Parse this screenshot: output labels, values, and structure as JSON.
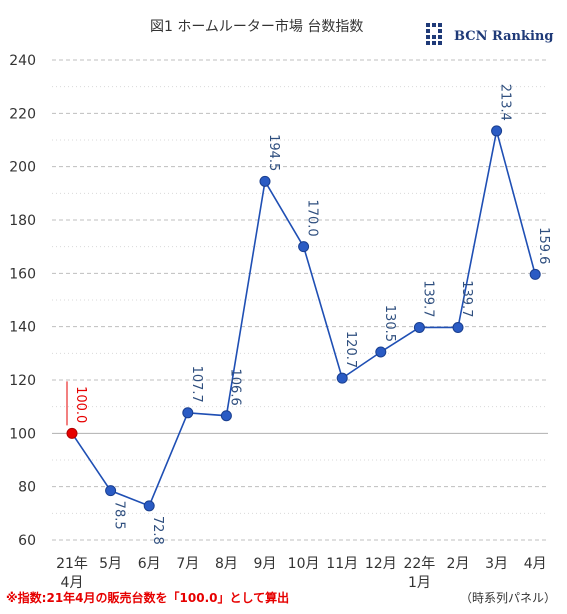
{
  "header": {
    "title": "図1 ホームルーター市場 台数指数",
    "brand": "BCN Ranking"
  },
  "chart_data": {
    "type": "line",
    "title": "図1 ホームルーター市場 台数指数",
    "categories": [
      [
        "21年",
        "4月"
      ],
      [
        "5月"
      ],
      [
        "6月"
      ],
      [
        "7月"
      ],
      [
        "8月"
      ],
      [
        "9月"
      ],
      [
        "10月"
      ],
      [
        "11月"
      ],
      [
        "12月"
      ],
      [
        "22年",
        "1月"
      ],
      [
        "2月"
      ],
      [
        "3月"
      ],
      [
        "4月"
      ]
    ],
    "series": [
      {
        "values": [
          100.0,
          78.5,
          72.8,
          107.7,
          106.6,
          194.5,
          170.0,
          120.7,
          130.5,
          139.7,
          139.7,
          213.4,
          159.6
        ],
        "labels": [
          "100.0",
          "78.5",
          "72.8",
          "107.7",
          "106.6",
          "194.5",
          "170.0",
          "120.7",
          "130.5",
          "139.7",
          "139.7",
          "213.4",
          "159.6"
        ]
      }
    ],
    "ylim": [
      60,
      240
    ],
    "yticks": [
      "240",
      "220",
      "200",
      "180",
      "160",
      "140",
      "120",
      "100",
      "80",
      "60"
    ],
    "grid": true,
    "legend": "none",
    "colors": {
      "line": "#1f4fb4",
      "marker": "#2a5bc4",
      "base_marker": "#e60000",
      "base_label": "#e60000",
      "label": "#2f4f7f",
      "grid": "#bfbfbf"
    }
  },
  "notes": {
    "footnote": "※指数:21年4月の販売台数を「100.0」として算出",
    "panel": "（時系列パネル）"
  }
}
